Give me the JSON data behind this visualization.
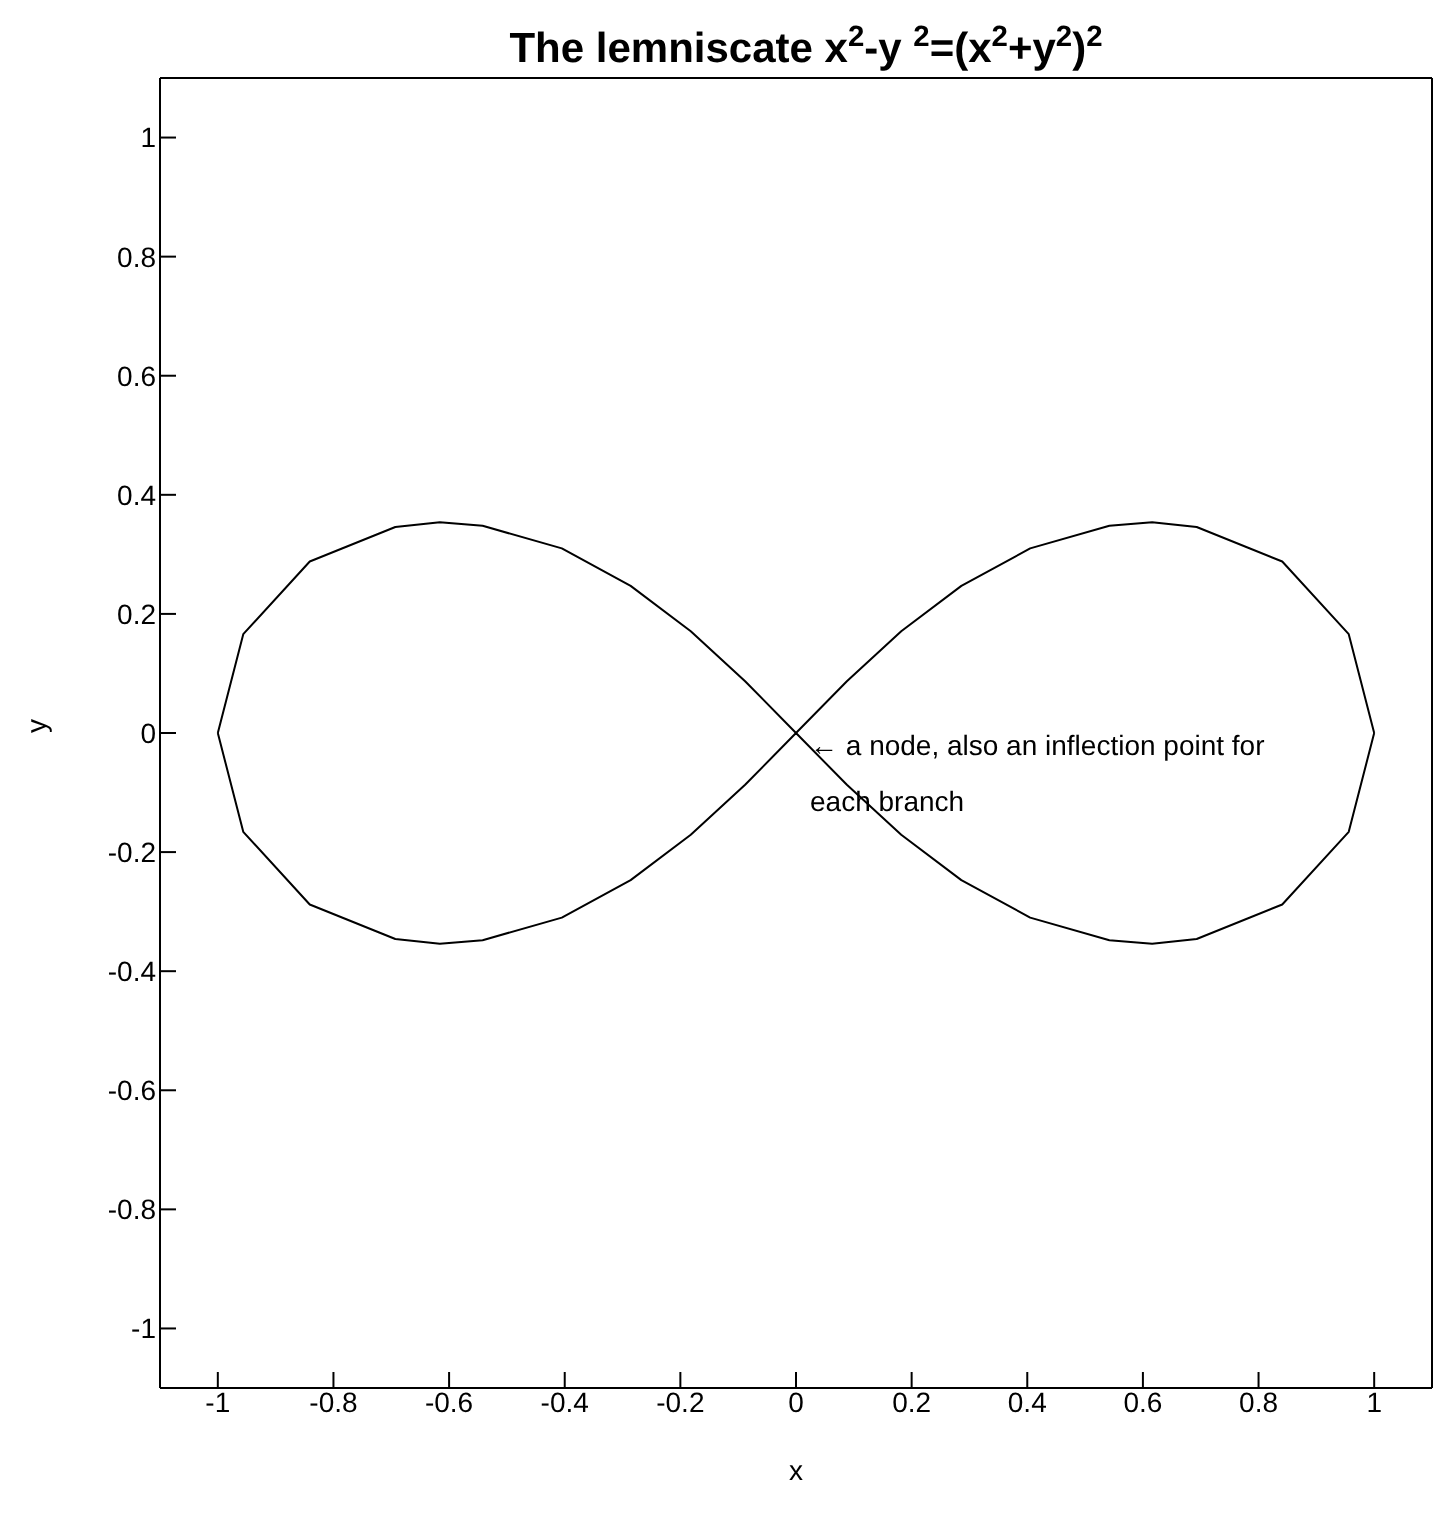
{
  "chart_data": {
    "type": "line",
    "title": "The lemniscate x$^{2}$-y $^{2}$=(x$^{2}$+y$^{2}$)$^{2}$",
    "xlabel": "x",
    "ylabel": "y",
    "series": [
      {
        "color": "#000000",
        "x": [
          -1,
          -0.956,
          -0.841,
          -0.693,
          -0.616,
          -0.542,
          -0.405,
          -0.286,
          -0.182,
          -0.088,
          0,
          0.088,
          0.182,
          0.286,
          0.405,
          0.542,
          0.616,
          0.693,
          0.841,
          0.956,
          1
        ],
        "values": [
          0,
          0.166,
          0.288,
          0.346,
          0.354,
          0.348,
          0.31,
          0.247,
          0.171,
          0.087,
          0,
          0.087,
          0.171,
          0.247,
          0.31,
          0.348,
          0.354,
          0.346,
          0.288,
          0.166,
          0
        ]
      },
      {
        "color": "#000000",
        "x": [
          -1,
          -0.956,
          -0.841,
          -0.693,
          -0.616,
          -0.542,
          -0.405,
          -0.286,
          -0.182,
          -0.088,
          0,
          0.088,
          0.182,
          0.286,
          0.405,
          0.542,
          0.616,
          0.693,
          0.841,
          0.956,
          1
        ],
        "values": [
          0,
          -0.166,
          -0.288,
          -0.346,
          -0.354,
          -0.348,
          -0.31,
          -0.247,
          -0.171,
          -0.087,
          0,
          -0.087,
          -0.171,
          -0.247,
          -0.31,
          -0.348,
          -0.354,
          -0.346,
          -0.288,
          -0.166,
          0
        ]
      }
    ],
    "xlim": [
      -1.1,
      1.1
    ],
    "ylim": [
      -1.1,
      1.1
    ],
    "xticks": [
      -1,
      -0.8,
      -0.6,
      -0.4,
      -0.2,
      0,
      0.2,
      0.4,
      0.6,
      0.8,
      1
    ],
    "yticks": [
      -1,
      -0.8,
      -0.6,
      -0.4,
      -0.2,
      0,
      0.2,
      0.4,
      0.6,
      0.8,
      1
    ],
    "line_style": "solid",
    "annotations": [
      {
        "text": "← a node, also an inflection point for each branch",
        "x": 0,
        "y": 0
      }
    ]
  }
}
